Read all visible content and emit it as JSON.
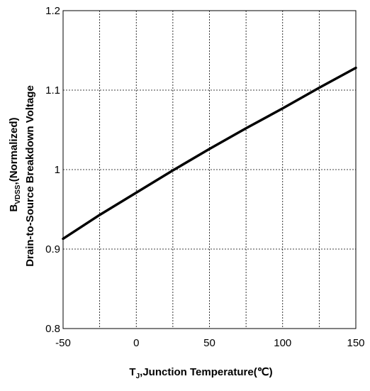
{
  "chart_data": {
    "type": "line",
    "title": "",
    "xlabel": {
      "prefix": "T",
      "sub": "J",
      "rest": ",Junction Temperature(℃)"
    },
    "ylabel": {
      "line1_prefix": "B",
      "line1_sub": "VDSS",
      "line1_rest": ",(Normalized)",
      "line2": "Drain-to-Source Breakdown Voltage"
    },
    "xlim": [
      -50,
      150
    ],
    "ylim": [
      0.8,
      1.2
    ],
    "x_ticks": [
      -50,
      0,
      50,
      100,
      150
    ],
    "x_tick_labels": [
      "-50",
      "0",
      "50",
      "100",
      "150"
    ],
    "x_grid": [
      -50,
      -25,
      0,
      25,
      50,
      75,
      100,
      125,
      150
    ],
    "y_ticks": [
      0.8,
      0.9,
      1.0,
      1.1,
      1.2
    ],
    "y_tick_labels": [
      "0.8",
      "0.9",
      "1",
      "1.1",
      "1.2"
    ],
    "grid": true,
    "grid_style": "dashed",
    "series": [
      {
        "color": "#000000",
        "x": [
          -50,
          -25,
          0,
          25,
          50,
          75,
          100,
          125,
          150
        ],
        "y": [
          0.913,
          0.943,
          0.971,
          0.999,
          1.026,
          1.052,
          1.077,
          1.103,
          1.128
        ]
      }
    ]
  }
}
